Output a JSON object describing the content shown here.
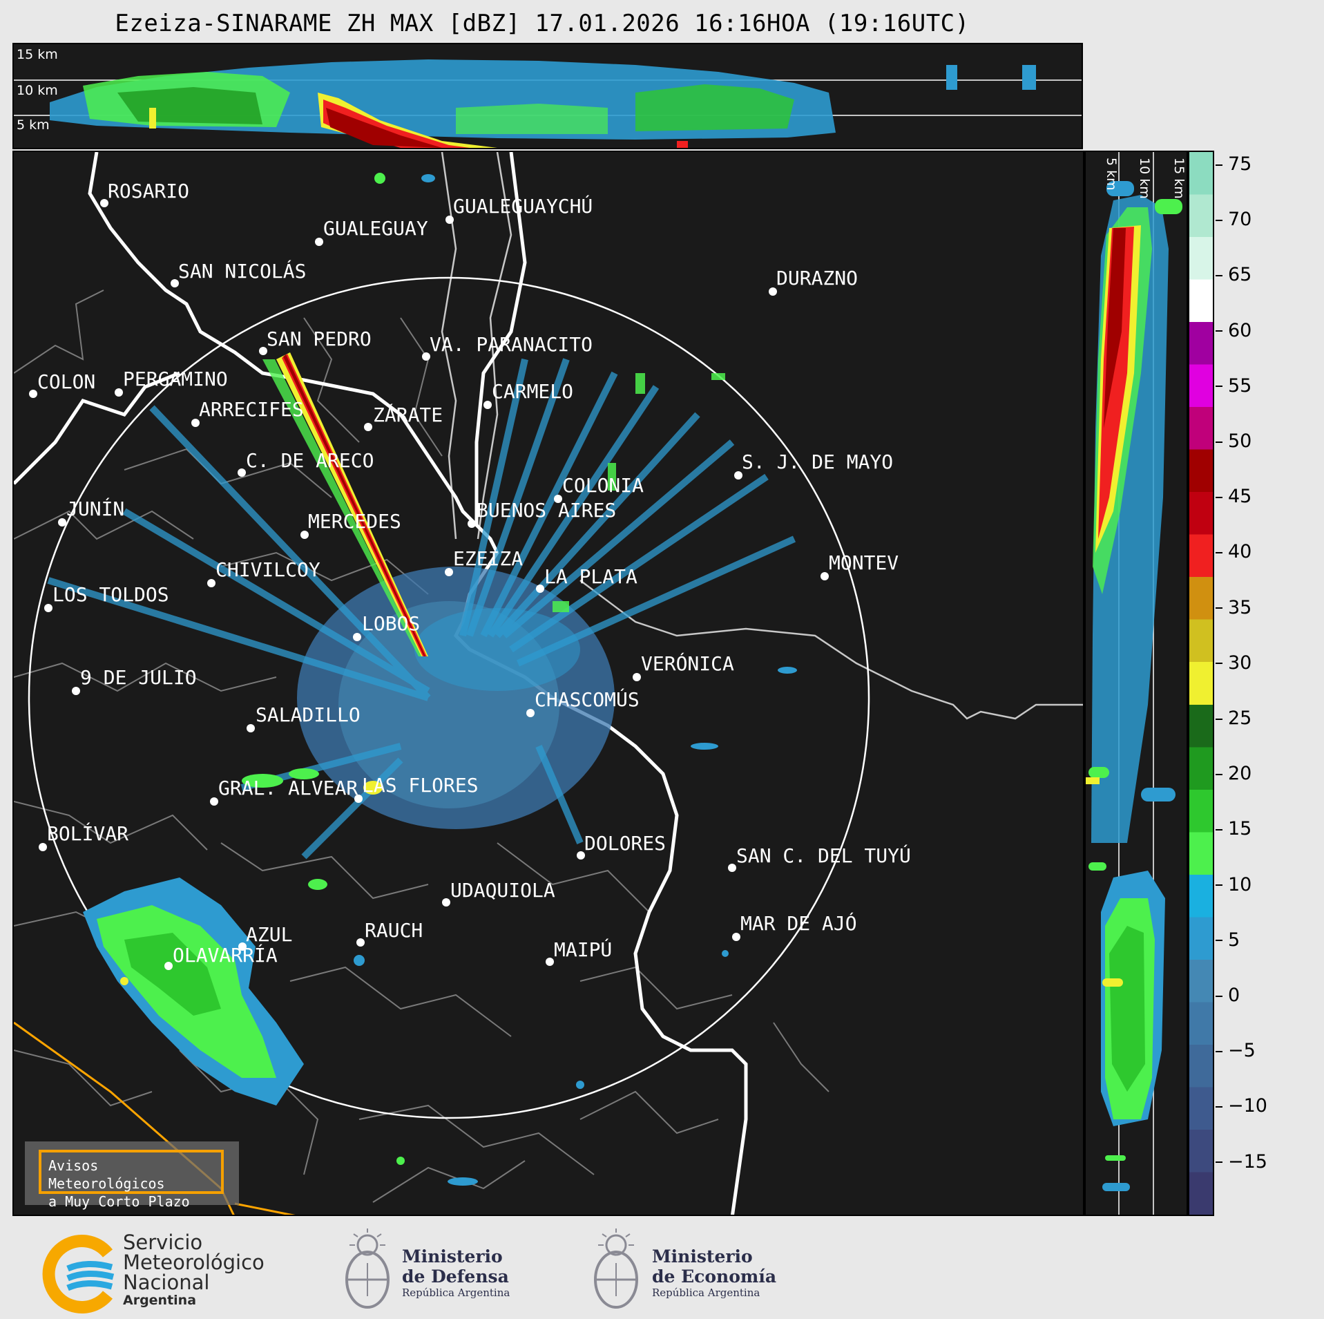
{
  "title": "Ezeiza-SINARAME ZH MAX [dBZ] 17.01.2026 16:16HOA (19:16UTC)",
  "top_panel": {
    "heights": [
      "15 km",
      "10 km",
      "5 km"
    ]
  },
  "side_panel": {
    "heights": [
      "5 km",
      "10 km",
      "15 km"
    ]
  },
  "colorbar": {
    "ticks": [
      "75",
      "70",
      "65",
      "60",
      "55",
      "50",
      "45",
      "40",
      "35",
      "30",
      "25",
      "20",
      "15",
      "10",
      "5",
      "0",
      "−5",
      "−10",
      "−15"
    ],
    "colors": [
      "#3a3a6e",
      "#3d4a7e",
      "#3e5a8e",
      "#3f6a9a",
      "#4079a8",
      "#4488b4",
      "#2e9bd0",
      "#1ab0e0",
      "#4df04d",
      "#2ec82e",
      "#1f9a1f",
      "#1a6a1a",
      "#f0f030",
      "#d0c020",
      "#d09010",
      "#f02020",
      "#c00010",
      "#a00000",
      "#c0007a",
      "#e000e0",
      "#a000a0",
      "#ffffff",
      "#d8f5e8",
      "#b0e8d0",
      "#8cdcc0"
    ]
  },
  "cities": [
    {
      "name": "ROSARIO"
    },
    {
      "name": "GUALEGUAYCHÚ"
    },
    {
      "name": "GUALEGUAY"
    },
    {
      "name": "SAN NICOLÁS"
    },
    {
      "name": "DURAZNO"
    },
    {
      "name": "SAN PEDRO"
    },
    {
      "name": "VA. PARANACITO"
    },
    {
      "name": "COLON"
    },
    {
      "name": "PERGAMINO"
    },
    {
      "name": "CARMELO"
    },
    {
      "name": "ARRECIFES"
    },
    {
      "name": "ZÁRATE"
    },
    {
      "name": "C. DE ARECO"
    },
    {
      "name": "S. J. DE MAYO"
    },
    {
      "name": "COLONIA"
    },
    {
      "name": "JUNÍN"
    },
    {
      "name": "MERCEDES"
    },
    {
      "name": "BUENOS AIRES"
    },
    {
      "name": "EZEIZA"
    },
    {
      "name": "CHIVILCOY"
    },
    {
      "name": "LA PLATA"
    },
    {
      "name": "MONTEV"
    },
    {
      "name": "LOS TOLDOS"
    },
    {
      "name": "LOBOS"
    },
    {
      "name": "VERÓNICA"
    },
    {
      "name": "9 DE JULIO"
    },
    {
      "name": "CHASCOMÚS"
    },
    {
      "name": "SALADILLO"
    },
    {
      "name": "GRAL. ALVEAR"
    },
    {
      "name": "LAS FLORES"
    },
    {
      "name": "BOLÍVAR"
    },
    {
      "name": "DOLORES"
    },
    {
      "name": "SAN C. DEL TUYÚ"
    },
    {
      "name": "UDAQUIOLA"
    },
    {
      "name": "AZUL"
    },
    {
      "name": "RAUCH"
    },
    {
      "name": "MAR DE AJÓ"
    },
    {
      "name": "OLAVARRÍA"
    },
    {
      "name": "MAIPÚ"
    }
  ],
  "avisos": {
    "line1": "Avisos Meteorológicos",
    "line2": "a Muy Corto Plazo"
  },
  "footer": {
    "smn": {
      "l1": "Servicio",
      "l2": "Meteorológico",
      "l3": "Nacional",
      "l4": "Argentina"
    },
    "defensa": {
      "l1": "Ministerio",
      "l2": "de Defensa",
      "l3": "República Argentina"
    },
    "economia": {
      "l1": "Ministerio",
      "l2": "de Economía",
      "l3": "República Argentina"
    }
  }
}
